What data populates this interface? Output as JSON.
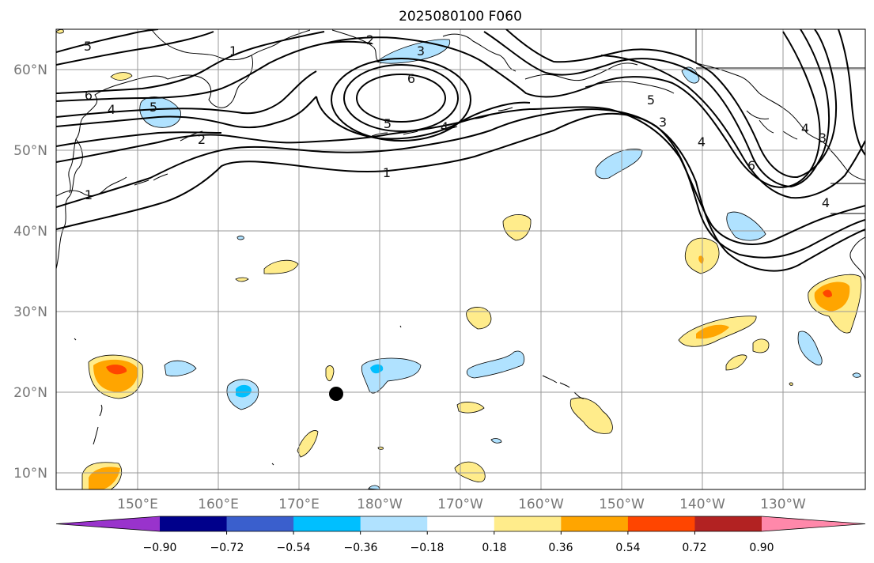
{
  "title": "2025080100 F060",
  "lat_labels": [
    "10°N",
    "20°N",
    "30°N",
    "40°N",
    "50°N",
    "60°N"
  ],
  "lon_labels": [
    "150°E",
    "160°E",
    "170°E",
    "180°W",
    "170°W",
    "160°W",
    "150°W",
    "140°W",
    "130°W"
  ],
  "colorbar": {
    "ticks": [
      "−0.90",
      "−0.72",
      "−0.54",
      "−0.36",
      "−0.18",
      "0.18",
      "0.36",
      "0.54",
      "0.72",
      "0.90"
    ],
    "colors": [
      "#9933cc",
      "#00008b",
      "#3a5fcd",
      "#00bfff",
      "#b0e2ff",
      "#ffffff",
      "#ffec8b",
      "#ffa500",
      "#ff4500",
      "#b22222",
      "#ff88aa"
    ]
  },
  "contour_labels": [
    "5",
    "6",
    "4",
    "2",
    "1",
    "3",
    "6",
    "5",
    "4",
    "1",
    "5",
    "3",
    "4",
    "6",
    "4",
    "2",
    "1",
    "4",
    "3",
    "5"
  ],
  "marker": "station-point"
}
